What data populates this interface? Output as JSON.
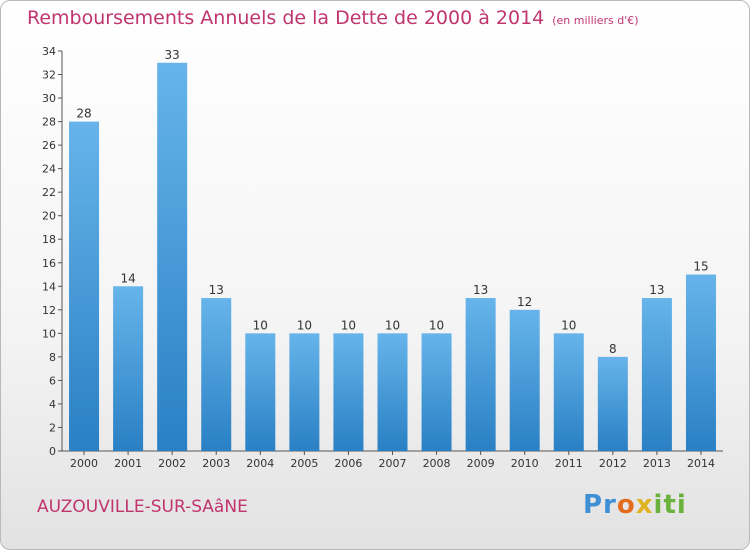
{
  "header": {
    "title": "Remboursements Annuels de la Dette de 2000 à 2014",
    "unit": "(en milliers d'€)"
  },
  "footer": {
    "commune": "AUZOUVILLE-SUR-SAâNE",
    "logo": {
      "part1": "Pr",
      "part2": "o",
      "part3": "x",
      "part4": "iti"
    }
  },
  "colors": {
    "bar_light": "#66b4ea",
    "bar_dark": "#2a80c4",
    "title": "#c0356e"
  },
  "chart_data": {
    "type": "bar",
    "categories": [
      "2000",
      "2001",
      "2002",
      "2003",
      "2004",
      "2005",
      "2006",
      "2007",
      "2008",
      "2009",
      "2010",
      "2011",
      "2012",
      "2013",
      "2014"
    ],
    "values": [
      28,
      14,
      33,
      13,
      10,
      10,
      10,
      10,
      10,
      13,
      12,
      10,
      8,
      13,
      15
    ],
    "title": "Remboursements Annuels de la Dette de 2000 à 2014",
    "xlabel": "",
    "ylabel": "",
    "ylim": [
      0,
      34
    ],
    "yticks": [
      0,
      2,
      4,
      6,
      8,
      10,
      12,
      14,
      16,
      18,
      20,
      22,
      24,
      26,
      28,
      30,
      32,
      34
    ],
    "grid": false,
    "data_labels": true
  }
}
